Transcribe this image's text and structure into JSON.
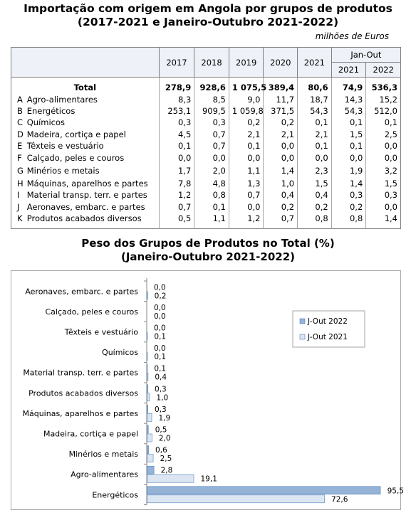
{
  "title_line1": "Importação com origem em Angola por grupos de produtos",
  "title_line2": "(2017-2021 e Janeiro-Outubro  2021-2022)",
  "unit": "milhões de Euros",
  "table": {
    "years": [
      "2017",
      "2018",
      "2019",
      "2020",
      "2021"
    ],
    "period_header": "Jan-Out",
    "period_years": [
      "2021",
      "2022"
    ],
    "total": {
      "label": "Total",
      "values": [
        "278,9",
        "928,6",
        "1 075,5",
        "389,4",
        "80,6",
        "74,9",
        "536,3"
      ]
    },
    "rows": [
      {
        "code": "A",
        "label": "Agro-alimentares",
        "values": [
          "8,3",
          "8,5",
          "9,0",
          "11,7",
          "18,7",
          "14,3",
          "15,2"
        ]
      },
      {
        "code": "B",
        "label": "Energéticos",
        "values": [
          "253,1",
          "909,5",
          "1 059,8",
          "371,5",
          "54,3",
          "54,3",
          "512,0"
        ]
      },
      {
        "code": "C",
        "label": "Químicos",
        "values": [
          "0,3",
          "0,3",
          "0,2",
          "0,2",
          "0,1",
          "0,1",
          "0,1"
        ]
      },
      {
        "code": "D",
        "label": "Madeira, cortiça e papel",
        "values": [
          "4,5",
          "0,7",
          "2,1",
          "2,1",
          "2,1",
          "1,5",
          "2,5"
        ]
      },
      {
        "code": "E",
        "label": "Têxteis e vestuário",
        "values": [
          "0,1",
          "0,7",
          "0,1",
          "0,0",
          "0,1",
          "0,1",
          "0,0"
        ]
      },
      {
        "code": "F",
        "label": "Calçado, peles e couros",
        "values": [
          "0,0",
          "0,0",
          "0,0",
          "0,0",
          "0,0",
          "0,0",
          "0,0"
        ]
      },
      {
        "code": "G",
        "label": "Minérios e metais",
        "values": [
          "1,7",
          "2,0",
          "1,1",
          "1,4",
          "2,3",
          "1,9",
          "3,2"
        ]
      },
      {
        "code": "H",
        "label": "Máquinas, aparelhos e partes",
        "values": [
          "7,8",
          "4,8",
          "1,3",
          "1,0",
          "1,5",
          "1,4",
          "1,5"
        ]
      },
      {
        "code": "I",
        "label": "Material transp. terr. e partes",
        "values": [
          "1,2",
          "0,8",
          "0,7",
          "0,4",
          "0,4",
          "0,3",
          "0,3"
        ]
      },
      {
        "code": "J",
        "label": "Aeronaves, embarc. e partes",
        "values": [
          "0,7",
          "0,1",
          "0,0",
          "0,2",
          "0,2",
          "0,2",
          "0,0"
        ]
      },
      {
        "code": "K",
        "label": "Produtos acabados diversos",
        "values": [
          "0,5",
          "1,1",
          "1,2",
          "0,7",
          "0,8",
          "0,8",
          "1,4"
        ]
      }
    ]
  },
  "chart_title_line1": "Peso dos Grupos de Produtos no Total (%)",
  "chart_title_line2": "(Janeiro-Outubro  2021-2022)",
  "chart_data": {
    "type": "bar",
    "orientation": "horizontal",
    "categories": [
      "Aeronaves, embarc. e partes",
      "Calçado, peles e couros",
      "Têxteis e vestuário",
      "Químicos",
      "Material transp. terr. e partes",
      "Produtos acabados diversos",
      "Máquinas, aparelhos e partes",
      "Madeira, cortiça e papel",
      "Minérios e metais",
      "Agro-alimentares",
      "Energéticos"
    ],
    "series": [
      {
        "name": "J-Out 2022",
        "values": [
          0.0,
          0.0,
          0.0,
          0.0,
          0.1,
          0.3,
          0.3,
          0.5,
          0.6,
          2.8,
          95.5
        ],
        "labels": [
          "0,0",
          "0,0",
          "0,0",
          "0,0",
          "0,1",
          "0,3",
          "0,3",
          "0,5",
          "0,6",
          "2,8",
          "95,5"
        ],
        "color": "#95b3d7"
      },
      {
        "name": "J-Out 2021",
        "values": [
          0.2,
          0.0,
          0.1,
          0.1,
          0.4,
          1.0,
          1.9,
          2.0,
          2.5,
          19.1,
          72.6
        ],
        "labels": [
          "0,2",
          "0,0",
          "0,1",
          "0,1",
          "0,4",
          "1,0",
          "1,9",
          "2,0",
          "2,5",
          "19,1",
          "72,6"
        ],
        "color": "#dce6f2"
      }
    ],
    "xlim": [
      0,
      100
    ],
    "legend_position": "right",
    "grid": false
  }
}
